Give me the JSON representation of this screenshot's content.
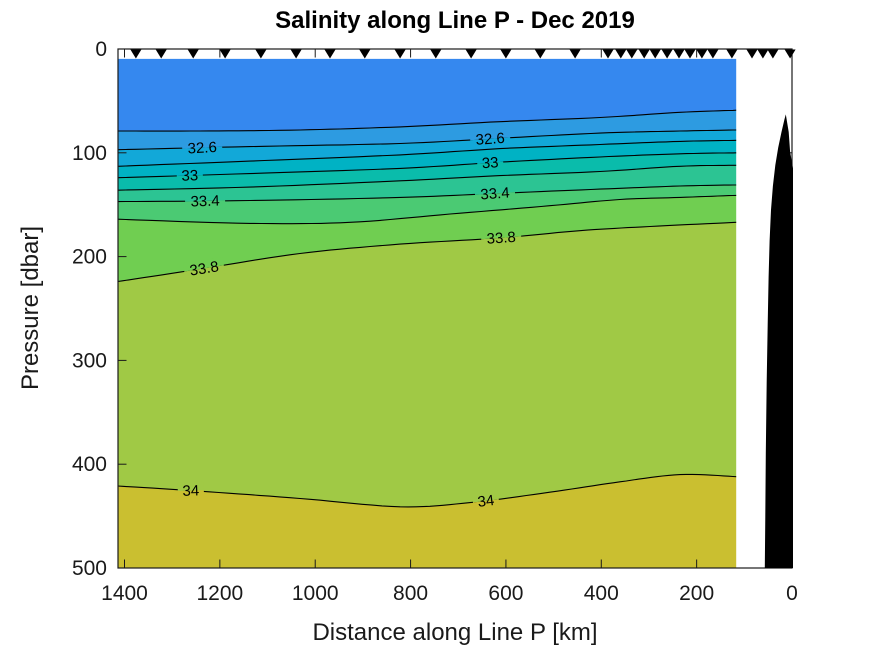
{
  "chart": {
    "title": "Salinity along Line P - Dec 2019",
    "xlabel": "Distance along Line P [km]",
    "ylabel": "Pressure [dbar]"
  },
  "chart_data": {
    "type": "filled_contour",
    "title": "Salinity along Line P - Dec 2019",
    "xlabel": "Distance along Line P [km]",
    "ylabel": "Pressure [dbar]",
    "x_axis": {
      "ticks": [
        1400,
        1200,
        1000,
        800,
        600,
        400,
        200,
        0
      ],
      "range_km": [
        0,
        1414
      ],
      "reversed": true
    },
    "y_axis": {
      "ticks": [
        0,
        100,
        200,
        300,
        400,
        500
      ],
      "range_dbar": [
        0,
        500
      ],
      "increasing_downward": true
    },
    "grid": false,
    "legend": "none",
    "data_extent_km": [
      117,
      1414
    ],
    "top_of_data_dbar": 9.5,
    "colors": {
      "axis": "#1a1a1a",
      "contour_line": "#000000",
      "station_marker": "#000000",
      "bathymetry": "#000000",
      "background": "#ffffff"
    },
    "bands": [
      {
        "salinity": "< 32.4",
        "color": "#3588ef"
      },
      {
        "salinity": "32.4 - 32.6",
        "color": "#2d9be1"
      },
      {
        "salinity": "32.6 - 32.8",
        "color": "#12a8d8"
      },
      {
        "salinity": "32.8 - 33.0",
        "color": "#00b2c4"
      },
      {
        "salinity": "33.0 - 33.2",
        "color": "#0abcab"
      },
      {
        "salinity": "33.2 - 33.4",
        "color": "#2cc493"
      },
      {
        "salinity": "33.4 - 33.6",
        "color": "#4bca73"
      },
      {
        "salinity": "33.6 - 33.8",
        "color": "#70ce51"
      },
      {
        "salinity": "33.8 - 34.0",
        "color": "#a0c945"
      },
      {
        "salinity": "> 34.0",
        "color": "#cabf30"
      }
    ],
    "contours": [
      {
        "level": 32.4,
        "labeled": false,
        "points": [
          [
            1414,
            79
          ],
          [
            1242,
            79
          ],
          [
            1032,
            78
          ],
          [
            822,
            75
          ],
          [
            612,
            70
          ],
          [
            403,
            66
          ],
          [
            235,
            61
          ],
          [
            117,
            59
          ]
        ]
      },
      {
        "level": 32.6,
        "labeled": true,
        "points": [
          [
            1414,
            97
          ],
          [
            1137,
            94
          ],
          [
            822,
            91
          ],
          [
            612,
            86
          ],
          [
            403,
            81
          ],
          [
            235,
            79
          ],
          [
            117,
            78
          ]
        ]
      },
      {
        "level": 32.8,
        "labeled": false,
        "points": [
          [
            1414,
            113
          ],
          [
            1137,
            108
          ],
          [
            822,
            102
          ],
          [
            612,
            96
          ],
          [
            403,
            92
          ],
          [
            235,
            89
          ],
          [
            117,
            88
          ]
        ]
      },
      {
        "level": 33.0,
        "labeled": true,
        "points": [
          [
            1414,
            124
          ],
          [
            1137,
            120
          ],
          [
            822,
            115
          ],
          [
            612,
            109
          ],
          [
            403,
            104
          ],
          [
            235,
            101
          ],
          [
            117,
            100
          ]
        ]
      },
      {
        "level": 33.2,
        "labeled": false,
        "points": [
          [
            1414,
            136
          ],
          [
            1137,
            133
          ],
          [
            822,
            127
          ],
          [
            612,
            122
          ],
          [
            403,
            118
          ],
          [
            235,
            113
          ],
          [
            117,
            112
          ]
        ]
      },
      {
        "level": 33.4,
        "labeled": true,
        "points": [
          [
            1414,
            147
          ],
          [
            1137,
            146
          ],
          [
            822,
            143
          ],
          [
            612,
            139
          ],
          [
            403,
            135
          ],
          [
            235,
            132
          ],
          [
            117,
            131
          ]
        ]
      },
      {
        "level": 33.6,
        "labeled": false,
        "points": [
          [
            1414,
            164
          ],
          [
            1137,
            168
          ],
          [
            927,
            167
          ],
          [
            717,
            159
          ],
          [
            508,
            151
          ],
          [
            361,
            145
          ],
          [
            235,
            143
          ],
          [
            117,
            141
          ]
        ]
      },
      {
        "level": 33.8,
        "labeled": true,
        "points": [
          [
            1414,
            224
          ],
          [
            1242,
            212
          ],
          [
            1032,
            197
          ],
          [
            822,
            188
          ],
          [
            612,
            182
          ],
          [
            445,
            175
          ],
          [
            298,
            171
          ],
          [
            117,
            167
          ]
        ]
      },
      {
        "level": 34.0,
        "labeled": true,
        "points": [
          [
            1414,
            421
          ],
          [
            1242,
            426
          ],
          [
            1032,
            433
          ],
          [
            822,
            441
          ],
          [
            675,
            437
          ],
          [
            508,
            427
          ],
          [
            361,
            417
          ],
          [
            235,
            410
          ],
          [
            117,
            412
          ]
        ]
      }
    ],
    "contour_labels": [
      {
        "text": "32.6",
        "km": 1237,
        "rot": -3
      },
      {
        "text": "32.6",
        "km": 633,
        "rot": -4
      },
      {
        "text": "33",
        "km": 1263,
        "rot": -2
      },
      {
        "text": "33",
        "km": 633,
        "rot": -4
      },
      {
        "text": "33.4",
        "km": 1231,
        "rot": -2
      },
      {
        "text": "33.4",
        "km": 623,
        "rot": -4
      },
      {
        "text": "33.8",
        "km": 1233,
        "rot": -9
      },
      {
        "text": "33.8",
        "km": 610,
        "rot": -4
      },
      {
        "text": "34",
        "km": 1261,
        "rot": -2
      },
      {
        "text": "34",
        "km": 642,
        "rot": -7
      }
    ],
    "station_markers_km": [
      1376,
      1323,
      1256,
      1189,
      1114,
      1040,
      969,
      896,
      822,
      747,
      673,
      600,
      528,
      455,
      386,
      359,
      336,
      310,
      287,
      262,
      237,
      214,
      189,
      166,
      126,
      84,
      61,
      40,
      4
    ],
    "bathymetry_km_dbar": [
      [
        13,
        63
      ],
      [
        16,
        68
      ],
      [
        22,
        80
      ],
      [
        29,
        95
      ],
      [
        35,
        112
      ],
      [
        40,
        132
      ],
      [
        44,
        155
      ],
      [
        47,
        185
      ],
      [
        49,
        220
      ],
      [
        51,
        265
      ],
      [
        53,
        320
      ],
      [
        55,
        390
      ],
      [
        56,
        450
      ],
      [
        57,
        500
      ],
      [
        -2,
        500
      ],
      [
        -2,
        115
      ],
      [
        4,
        99
      ],
      [
        7,
        80
      ]
    ]
  }
}
